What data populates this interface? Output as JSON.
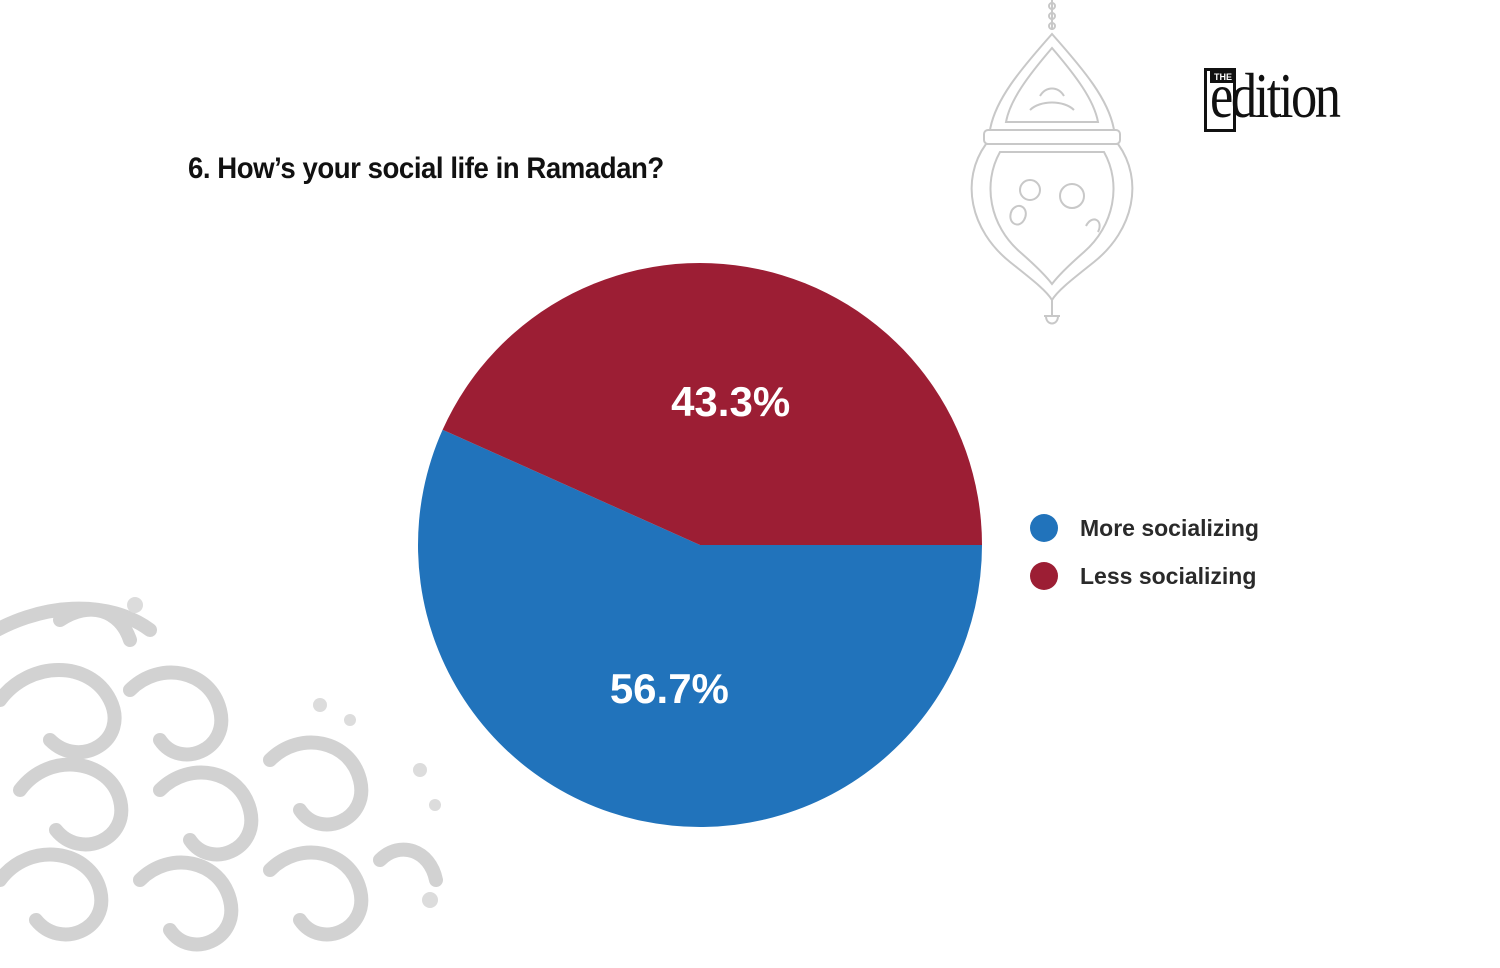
{
  "logo": {
    "top_text": "THE",
    "wordmark": "edition"
  },
  "chart_data": {
    "type": "pie",
    "title": "6. How’s your social life in Ramadan?",
    "categories": [
      "More socializing",
      "Less socializing"
    ],
    "values": [
      56.7,
      43.3
    ],
    "labels": [
      "56.7%",
      "43.3%"
    ],
    "colors": [
      "#2173bb",
      "#9c1e34"
    ],
    "start_angle_deg": 0,
    "direction": "clockwise",
    "legend_position": "right"
  }
}
